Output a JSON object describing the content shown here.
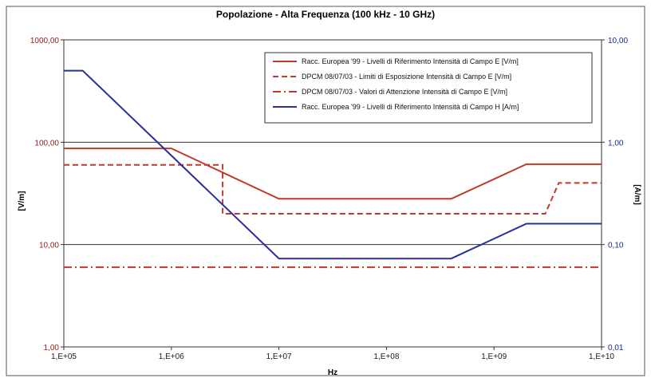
{
  "chart_data": {
    "type": "line",
    "title": "Popolazione - Alta Frequenza (100 kHz - 10 GHz)",
    "xlabel": "Hz",
    "ylabel_left": "[V/m]",
    "ylabel_right": "[A/m]",
    "x_scale": "log",
    "y_scale": "log",
    "xlim": [
      100000,
      10000000000
    ],
    "ylim_left": [
      1,
      1000
    ],
    "ylim_right": [
      0.01,
      10
    ],
    "x_ticks": [
      "1,E+05",
      "1,E+06",
      "1,E+07",
      "1,E+08",
      "1,E+09",
      "1,E+10"
    ],
    "y_ticks_left": [
      "1,00",
      "10,00",
      "100,00",
      "1000,00"
    ],
    "y_ticks_right": [
      "0,01",
      "0,10",
      "1,00",
      "10,00"
    ],
    "grid": "horizontal major lines",
    "legend_position": "top-right",
    "series": [
      {
        "name": "Racc. Europea '99 - Livelli di Riferimento Intensità di Campo E [V/m]",
        "axis": "left",
        "color": "#c0392b",
        "style": "solid",
        "x": [
          100000,
          1000000,
          10000000,
          400000000,
          2000000000,
          10000000000
        ],
        "y": [
          87,
          87,
          28,
          28,
          61,
          61
        ]
      },
      {
        "name": "DPCM 08/07/03 - Limiti di Esposizione Intensità di Campo E [V/m]",
        "axis": "left",
        "color": "#c0392b",
        "style": "dashed",
        "x": [
          100000,
          3000000,
          3000000,
          3000000000,
          4000000000,
          10000000000
        ],
        "y": [
          60,
          60,
          20,
          20,
          40,
          40
        ]
      },
      {
        "name": "DPCM 08/07/03 - Valori di Attenzione Intensità di Campo E [V/m]",
        "axis": "left",
        "color": "#c0392b",
        "style": "dash-dot",
        "x": [
          100000,
          10000000000
        ],
        "y": [
          6,
          6
        ]
      },
      {
        "name": "Racc. Europea '99 - Livelli di Riferimento Intensità di Campo H [A/m]",
        "axis": "right",
        "color": "#2b2f9c",
        "style": "solid",
        "x": [
          100000,
          150000,
          10000000,
          400000000,
          2000000000,
          10000000000
        ],
        "y": [
          5,
          5,
          0.073,
          0.073,
          0.16,
          0.16
        ]
      }
    ]
  }
}
